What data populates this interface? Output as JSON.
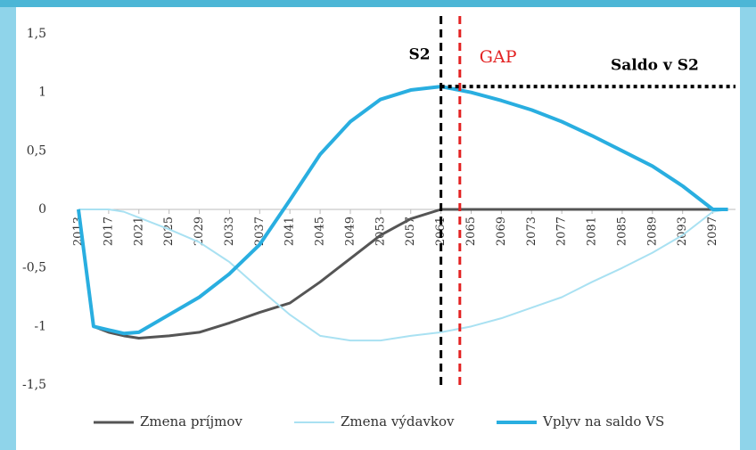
{
  "chart_data": {
    "type": "line",
    "x": [
      2013,
      2015,
      2017,
      2019,
      2021,
      2025,
      2029,
      2033,
      2037,
      2041,
      2045,
      2049,
      2053,
      2057,
      2061,
      2065,
      2069,
      2073,
      2077,
      2081,
      2085,
      2089,
      2093,
      2097,
      2099
    ],
    "series": [
      {
        "name": "Zmena príjmov",
        "color": "#555555",
        "width": 3,
        "values": [
          0,
          -1.0,
          -1.05,
          -1.08,
          -1.1,
          -1.08,
          -1.05,
          -0.97,
          -0.88,
          -0.8,
          -0.62,
          -0.42,
          -0.22,
          -0.08,
          0,
          0,
          0,
          0,
          0,
          0,
          0,
          0,
          0,
          0,
          0
        ]
      },
      {
        "name": "Zmena výdavkov",
        "color": "#a9e1f2",
        "width": 2,
        "values": [
          0,
          0,
          0,
          -0.02,
          -0.07,
          -0.17,
          -0.28,
          -0.45,
          -0.68,
          -0.9,
          -1.08,
          -1.12,
          -1.12,
          -1.08,
          -1.05,
          -1.0,
          -0.93,
          -0.84,
          -0.75,
          -0.62,
          -0.5,
          -0.37,
          -0.22,
          -0.02,
          0
        ]
      },
      {
        "name": "Vplyv na saldo VS",
        "color": "#29aee0",
        "width": 4,
        "values": [
          0,
          -1.0,
          -1.03,
          -1.06,
          -1.05,
          -0.9,
          -0.75,
          -0.55,
          -0.3,
          0.08,
          0.47,
          0.75,
          0.94,
          1.02,
          1.05,
          1.0,
          0.93,
          0.85,
          0.75,
          0.63,
          0.5,
          0.37,
          0.2,
          0,
          0
        ]
      }
    ],
    "xlim": [
      2013,
      2100
    ],
    "xticks": [
      2013,
      2017,
      2021,
      2025,
      2029,
      2033,
      2037,
      2041,
      2045,
      2049,
      2053,
      2057,
      2061,
      2065,
      2069,
      2073,
      2077,
      2081,
      2085,
      2089,
      2093,
      2097
    ],
    "ylim": [
      -1.5,
      1.5
    ],
    "yticks": [
      {
        "value": -1.5,
        "label": "-1,5"
      },
      -1,
      {
        "value": -0.5,
        "label": "-0,5"
      },
      0,
      {
        "value": 0.5,
        "label": "0,5"
      },
      1,
      {
        "value": 1.5,
        "label": "1,5"
      }
    ],
    "grid": false,
    "legend": "bottom",
    "vlines": [
      {
        "text": "S2",
        "x": 2061,
        "color": "#000000"
      },
      {
        "text": "GAP",
        "x": 2063.5,
        "color": "#e32222"
      }
    ],
    "hline": {
      "text": "Saldo v S2",
      "y": 1.05,
      "x": [
        2061,
        2100
      ],
      "color": "#000000"
    }
  }
}
